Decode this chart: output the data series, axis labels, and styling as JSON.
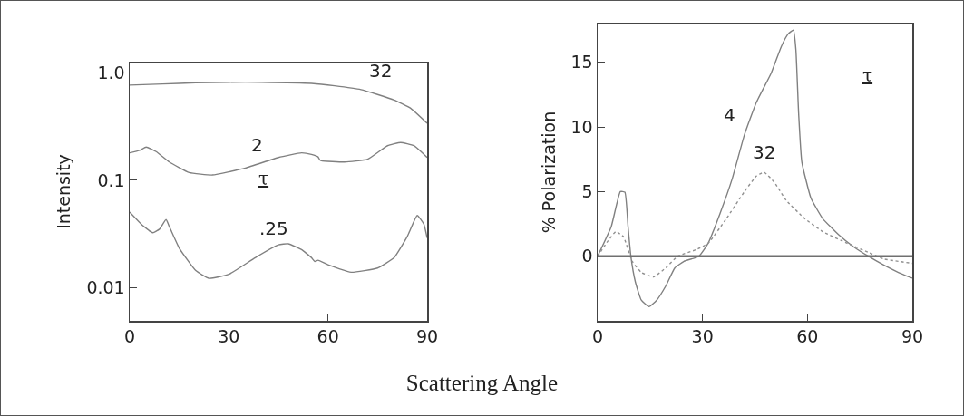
{
  "chart_data": [
    {
      "type": "line",
      "xlabel": "Scattering Angle",
      "ylabel": "Intensity",
      "legend_title": "τ",
      "log": true,
      "grid": false,
      "xlim": [
        0,
        90
      ],
      "xticks": [
        0,
        30,
        60,
        90
      ],
      "ylim": [
        0.0049,
        1.25
      ],
      "yticks": [
        {
          "value": 0.01,
          "label": "0.01"
        },
        0.1,
        {
          "value": 1,
          "label": "1.0"
        }
      ],
      "series": [
        {
          "color": "#808080",
          "line_style": "solid",
          "x": [
            0,
            10,
            20,
            30,
            40,
            55,
            62,
            70,
            75,
            80,
            85,
            90
          ],
          "values": [
            0.77,
            0.79,
            0.81,
            0.82,
            0.82,
            0.8,
            0.76,
            0.7,
            0.63,
            0.56,
            0.47,
            0.34
          ]
        },
        {
          "color": "#808080",
          "line_style": "solid",
          "x": [
            0,
            3,
            5,
            8,
            12,
            18,
            25,
            35,
            45,
            52,
            55,
            57,
            57.5,
            58,
            65,
            72,
            78,
            82,
            86,
            90
          ],
          "values": [
            0.18,
            0.19,
            0.204,
            0.185,
            0.148,
            0.118,
            0.112,
            0.13,
            0.163,
            0.18,
            0.174,
            0.165,
            0.155,
            0.152,
            0.148,
            0.157,
            0.21,
            0.225,
            0.21,
            0.163
          ]
        },
        {
          "color": "#808080",
          "line_style": "solid",
          "x": [
            0,
            4,
            7,
            9,
            11,
            12,
            15,
            20,
            24,
            30,
            38,
            45,
            48,
            52,
            55,
            56,
            57,
            60,
            67,
            75,
            80,
            84,
            87,
            89,
            90
          ],
          "values": [
            0.0506,
            0.0377,
            0.0325,
            0.035,
            0.043,
            0.037,
            0.0233,
            0.0144,
            0.0122,
            0.0133,
            0.019,
            0.025,
            0.0256,
            0.0226,
            0.019,
            0.0175,
            0.018,
            0.0163,
            0.0139,
            0.0152,
            0.019,
            0.03,
            0.047,
            0.039,
            0.029
          ]
        }
      ],
      "annotations": [
        {
          "text": "32",
          "x": 76,
          "y": 0.68
        },
        {
          "text": "2",
          "x": 38.5,
          "y": 0.14
        },
        {
          "text": ".25",
          "x": 43.5,
          "y": 0.023
        }
      ]
    },
    {
      "type": "line",
      "ylabel": "% Polarization",
      "legend_title": "τ",
      "grid": false,
      "xlim": [
        0,
        90
      ],
      "xticks": [
        0,
        30,
        60,
        90
      ],
      "ylim": [
        -5,
        18
      ],
      "yticks": [
        0,
        5,
        10,
        15
      ],
      "series": [
        {
          "color": "#808080",
          "line_style": "solid",
          "x": [
            0,
            3.9,
            6.5,
            7.8,
            8.7,
            9.5,
            10.8,
            12.5,
            14.7,
            16.9,
            19.5,
            22.1,
            24.7,
            29,
            31.6,
            35,
            38.5,
            42,
            45.4,
            49.7,
            52.5,
            54.5,
            56,
            56.7,
            57.5,
            58.4,
            61,
            64.4,
            68.8,
            73.1,
            77.4,
            81.7,
            86,
            90
          ],
          "values": [
            0,
            2.3,
            5,
            4.95,
            2.3,
            0,
            -2,
            -3.4,
            -3.9,
            -3.4,
            -2.3,
            -0.9,
            -0.4,
            0,
            1,
            3.3,
            6,
            9.4,
            11.9,
            14.2,
            16.2,
            17.2,
            17.5,
            16,
            11,
            7.3,
            4.5,
            2.9,
            1.7,
            0.75,
            0,
            -0.66,
            -1.25,
            -1.7
          ]
        },
        {
          "color": "#909090",
          "line_style": "dotted",
          "x": [
            0,
            3,
            5.2,
            7.4,
            9.9,
            12.5,
            16,
            19.5,
            22.9,
            28.1,
            31.6,
            36.8,
            42,
            45.4,
            47.6,
            50.6,
            54,
            59.3,
            64.4,
            71.4,
            77.4,
            81.7,
            90
          ],
          "values": [
            0,
            1.2,
            1.9,
            1.5,
            -0.4,
            -1.25,
            -1.6,
            -0.9,
            0,
            0.5,
            1,
            2.9,
            5,
            6.2,
            6.5,
            5.7,
            4.3,
            2.9,
            1.9,
            1,
            0.3,
            -0.2,
            -0.55
          ]
        }
      ],
      "ref_lines": [
        {
          "axis": "y",
          "value": 0,
          "color": "#707070"
        }
      ],
      "annotations": [
        {
          "text": "4",
          "x": 42,
          "y": 9.4
        },
        {
          "text": "32",
          "x": 47.6,
          "y": 6.5
        }
      ]
    }
  ]
}
